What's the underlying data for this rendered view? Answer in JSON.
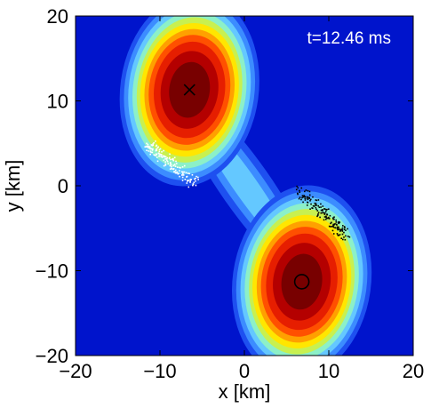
{
  "chart_data": {
    "type": "heatmap",
    "annotation": "t=12.46 ms",
    "xlabel": "x [km]",
    "ylabel": "y [km]",
    "xlim": [
      -20,
      20
    ],
    "ylim": [
      -20,
      20
    ],
    "xticks": [
      -20,
      -10,
      0,
      10,
      20
    ],
    "yticks": [
      -20,
      -10,
      0,
      10,
      20
    ],
    "xtick_labels": [
      "−20",
      "−10",
      "0",
      "10",
      "20"
    ],
    "ytick_labels": [
      "−20",
      "−10",
      "0",
      "10",
      "20"
    ],
    "grid": false,
    "colormap": [
      "#0014cc",
      "#1e50f0",
      "#3c8cff",
      "#64c8ff",
      "#8cf0c8",
      "#c8f050",
      "#ffe600",
      "#ffa000",
      "#ff5000",
      "#e61e00",
      "#b40000",
      "#780000"
    ],
    "stars": [
      {
        "marker": "x",
        "center": [
          -6.5,
          11.3
        ],
        "tilt_deg": 8
      },
      {
        "marker": "o",
        "center": [
          6.8,
          -11.3
        ],
        "tilt_deg": 8
      }
    ],
    "particle_streams": [
      {
        "color": "#ffffff",
        "from": [
          -11.5,
          5.0
        ],
        "to": [
          -6.0,
          0.5
        ]
      },
      {
        "color": "#000000",
        "from": [
          6.5,
          -0.5
        ],
        "to": [
          12.0,
          -5.8
        ]
      }
    ]
  }
}
